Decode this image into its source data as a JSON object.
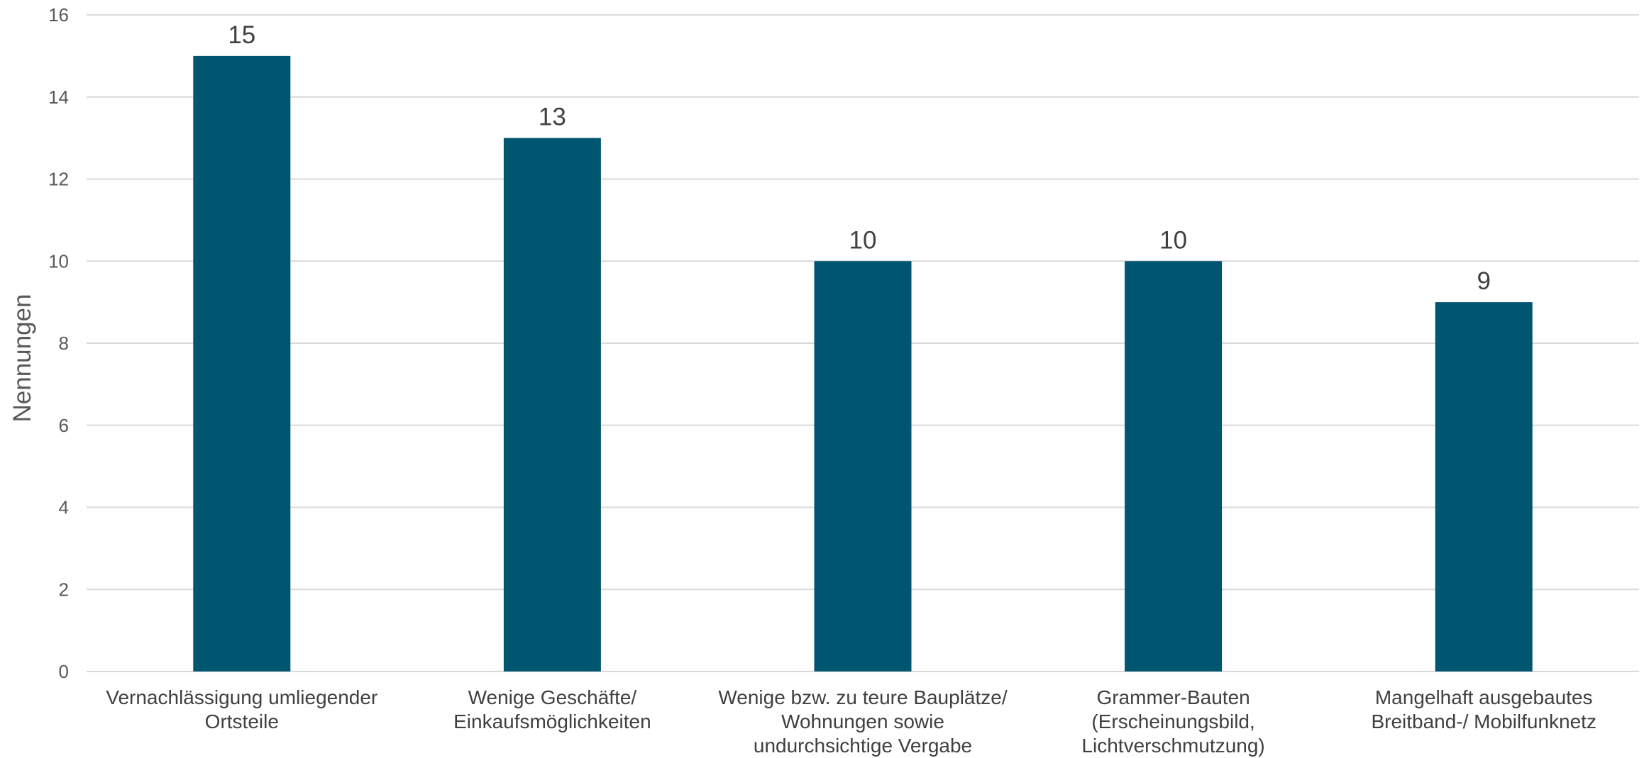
{
  "chart_data": {
    "type": "bar",
    "title": "",
    "xlabel": "",
    "ylabel": "Nennungen",
    "ylim": [
      0,
      16
    ],
    "yticks": [
      0,
      2,
      4,
      6,
      8,
      10,
      12,
      14,
      16
    ],
    "grid": true,
    "legend": "none",
    "bar_color": "#005570",
    "categories": [
      [
        "Vernachlässigung umliegender",
        "Ortsteile"
      ],
      [
        "Wenige Geschäfte/",
        "Einkaufsmöglichkeiten"
      ],
      [
        "Wenige bzw. zu teure Bauplätze/",
        "Wohnungen sowie",
        "undurchsichtige Vergabe"
      ],
      [
        "Grammer-Bauten",
        "(Erscheinungsbild,",
        "Lichtverschmutzung)"
      ],
      [
        "Mangelhaft ausgebautes",
        "Breitband-/ Mobilfunknetz"
      ]
    ],
    "values": [
      15,
      13,
      10,
      10,
      9
    ],
    "data_labels": [
      "15",
      "13",
      "10",
      "10",
      "9"
    ]
  }
}
